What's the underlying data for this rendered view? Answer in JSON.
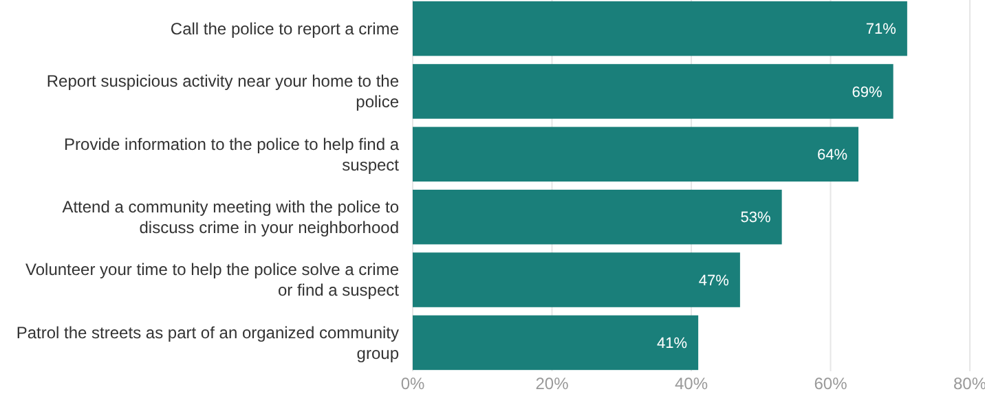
{
  "chart_data": {
    "type": "bar",
    "orientation": "horizontal",
    "categories": [
      "Call the police to report a crime",
      "Report suspicious activity near your home to the police",
      "Provide information to the police to help find a suspect",
      "Attend a community meeting with the police to discuss crime in your neighborhood",
      "Volunteer your time to help the police solve a crime or find a suspect",
      "Patrol the streets as part of an organized community group"
    ],
    "values": [
      71,
      69,
      64,
      53,
      47,
      41
    ],
    "value_labels": [
      "71%",
      "69%",
      "64%",
      "53%",
      "47%",
      "41%"
    ],
    "color": "#1a7f7a",
    "xlim": [
      0,
      80
    ],
    "xticks": [
      {
        "value": 0,
        "label": "0%"
      },
      {
        "value": 20,
        "label": "20%"
      },
      {
        "value": 40,
        "label": "40%"
      },
      {
        "value": 60,
        "label": "60%"
      },
      {
        "value": 80,
        "label": "80%"
      }
    ],
    "grid": "x"
  }
}
